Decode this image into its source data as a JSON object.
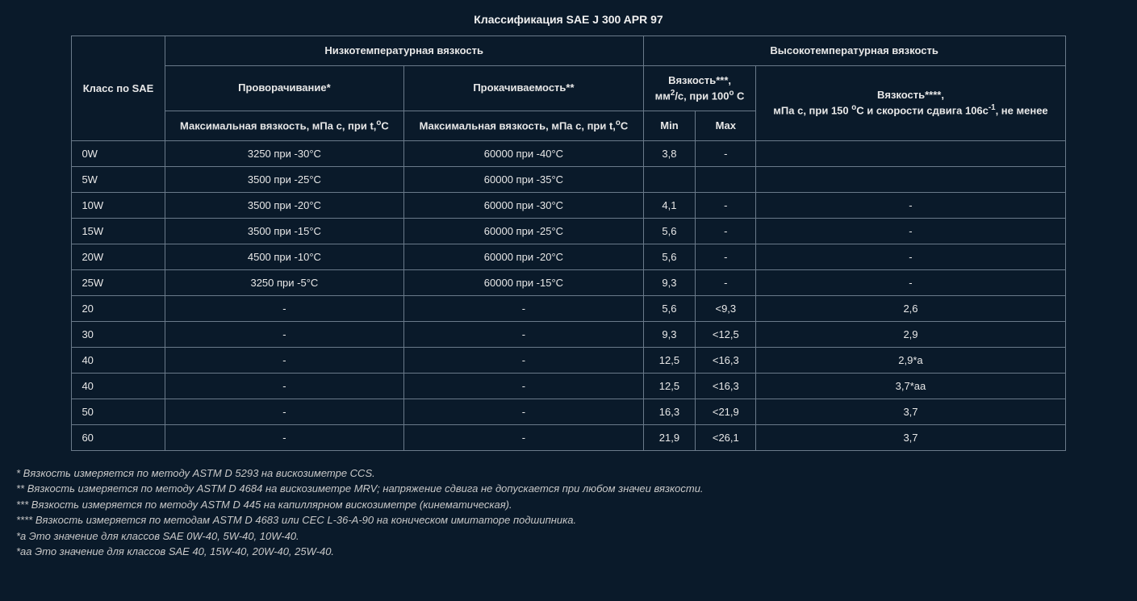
{
  "title": "Классификация SAE J 300 APR 97",
  "header": {
    "sae_class": "Класс по SAE",
    "low_temp_group": "Низкотемпературная вязкость",
    "high_temp_group": "Высокотемпературная вязкость",
    "cranking": "Проворачивание*",
    "pumpability": "Прокачиваемость**",
    "visc100_line1": "Вязкость***,",
    "visc100_line2_a": "мм",
    "visc100_line2_sup": "2",
    "visc100_line2_b": "/с, при 100",
    "visc100_line2_sup2": "о",
    "visc100_line2_c": " С",
    "visc150_line1": "Вязкость****,",
    "visc150_line2_a": "мПа с, при 150 ",
    "visc150_line2_sup": "о",
    "visc150_line2_b": "С и скорости сдвига 106с",
    "visc150_line2_sup2": "-1",
    "visc150_line2_c": ", не менее",
    "max_visc_cranking_a": "Максимальная вязкость, мПа с, при t,",
    "max_visc_cranking_sup": "о",
    "max_visc_cranking_b": "С",
    "max_visc_pump_a": "Максимальная вязкость, мПа с, при t,",
    "max_visc_pump_sup": "о",
    "max_visc_pump_b": "С",
    "min": "Min",
    "max": "Max"
  },
  "rows": [
    {
      "sae": "0W",
      "crank": "3250 при -30°С",
      "pump": "60000 при -40°С",
      "min": "3,8",
      "max": "-",
      "v150": ""
    },
    {
      "sae": "5W",
      "crank": "3500 при -25°С",
      "pump": "60000 при -35°С",
      "min": "",
      "max": "",
      "v150": ""
    },
    {
      "sae": "10W",
      "crank": "3500 при -20°С",
      "pump": "60000 при -30°С",
      "min": "4,1",
      "max": "-",
      "v150": "-"
    },
    {
      "sae": "15W",
      "crank": "3500 при -15°С",
      "pump": "60000 при -25°С",
      "min": "5,6",
      "max": "-",
      "v150": "-"
    },
    {
      "sae": "20W",
      "crank": "4500 при -10°С",
      "pump": "60000 при -20°С",
      "min": "5,6",
      "max": "-",
      "v150": "-"
    },
    {
      "sae": "25W",
      "crank": "3250 при -5°С",
      "pump": "60000 при -15°С",
      "min": "9,3",
      "max": "-",
      "v150": "-"
    },
    {
      "sae": "20",
      "crank": "-",
      "pump": "-",
      "min": "5,6",
      "max": "<9,3",
      "v150": "2,6"
    },
    {
      "sae": "30",
      "crank": "-",
      "pump": "-",
      "min": "9,3",
      "max": "<12,5",
      "v150": "2,9"
    },
    {
      "sae": "40",
      "crank": "-",
      "pump": "-",
      "min": "12,5",
      "max": "<16,3",
      "v150": "2,9*а"
    },
    {
      "sae": "40",
      "crank": "-",
      "pump": "-",
      "min": "12,5",
      "max": "<16,3",
      "v150": "3,7*аа"
    },
    {
      "sae": "50",
      "crank": "-",
      "pump": "-",
      "min": "16,3",
      "max": "<21,9",
      "v150": "3,7"
    },
    {
      "sae": "60",
      "crank": "-",
      "pump": "-",
      "min": "21,9",
      "max": "<26,1",
      "v150": "3,7"
    }
  ],
  "footnotes": [
    "* Вязкость измеряется по методу ASTM D 5293 на вискозиметре CCS.",
    "** Вязкость измеряется по методу ASTM D 4684 на вискозиметре MRV; напряжение сдвига не допускается при любом значеи вязкости.",
    "*** Вязкость измеряется по методу ASTM D 445 на капиллярном вискозиметре (кинематическая).",
    "**** Вязкость измеряется по методам ASTM D 4683 или CEC L-36-A-90 на коническом имитаторе подшипника.",
    "*а Это значение для классов SAE 0W-40, 5W-40, 10W-40.",
    "*аа Это значение для классов SAE 40, 15W-40, 20W-40, 25W-40."
  ],
  "colors": {
    "background": "#0a1a2a",
    "border": "#6a7a8a",
    "text": "#e8e8e8",
    "footnote_text": "#c8c8c8"
  }
}
